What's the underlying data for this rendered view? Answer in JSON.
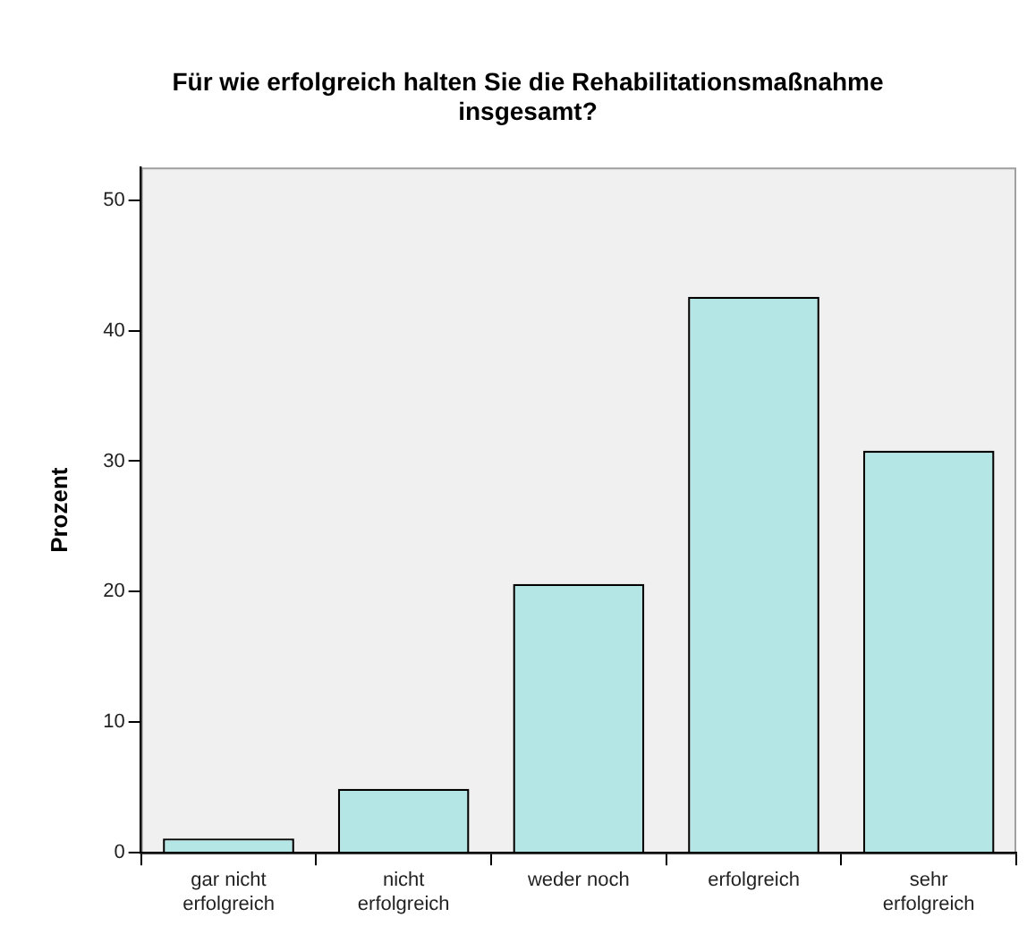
{
  "chart_data": {
    "type": "bar",
    "title": "Für wie erfolgreich halten Sie die Rehabilitationsmaßnahme insgesamt?",
    "ylabel": "Prozent",
    "categories": [
      "gar nicht erfolgreich",
      "nicht erfolgreich",
      "weder noch",
      "erfolgreich",
      "sehr erfolgreich"
    ],
    "values": [
      1.1,
      4.9,
      20.6,
      42.6,
      30.8
    ],
    "color": "#b4e6e6",
    "ylim": [
      0,
      52.5
    ],
    "yticks": [
      0,
      10,
      20,
      30,
      40,
      50
    ],
    "grid": false,
    "legend": false
  }
}
